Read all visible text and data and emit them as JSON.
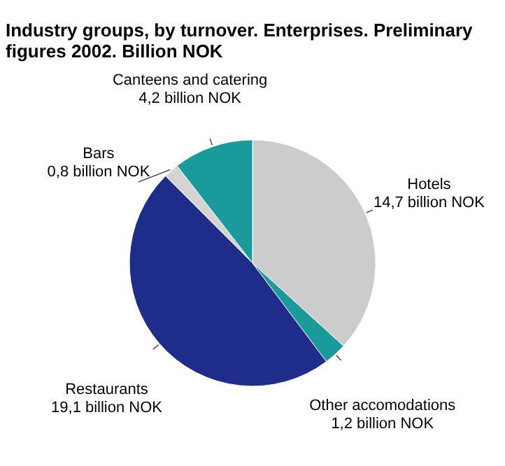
{
  "chart_data": {
    "type": "pie",
    "title": "Industry groups, by turnover. Enterprises. Preliminary figures 2002. Billion NOK",
    "categories": [
      "Hotels",
      "Other accomodations",
      "Restaurants",
      "Bars",
      "Canteens and catering"
    ],
    "values": [
      14.7,
      1.2,
      19.1,
      0.8,
      4.2
    ],
    "colors": [
      "#cccccc",
      "#1a9a9a",
      "#1f2d8a",
      "#d4d4d4",
      "#1a9a9a"
    ],
    "value_labels": [
      "14,7 billion NOK",
      "1,2 billion NOK",
      "19,1 billion NOK",
      "0,8 billion NOK",
      "4,2 billion NOK"
    ]
  }
}
